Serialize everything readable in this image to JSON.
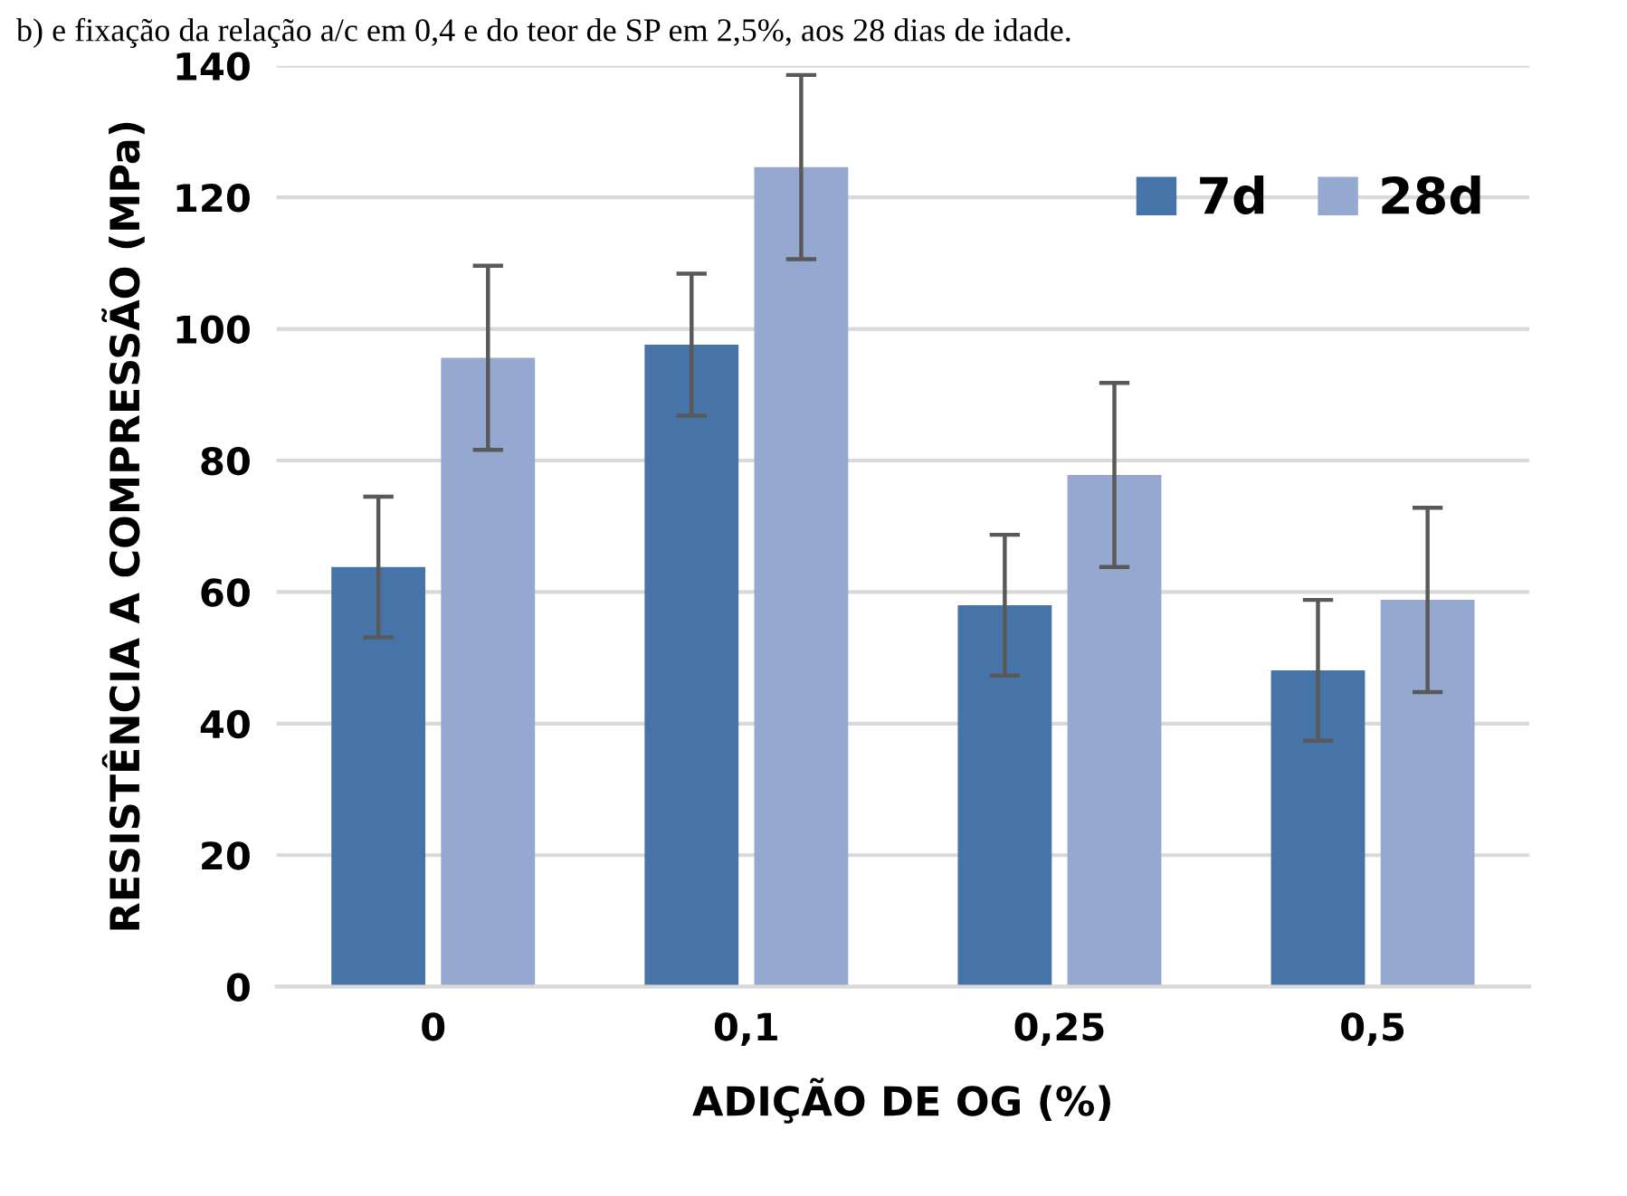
{
  "chart_data": {
    "type": "bar",
    "xlabel": "ADIÇÃO DE OG (%)",
    "ylabel": "RESISTÊNCIA A COMPRESSÃO (MPa)",
    "annotations": [
      "b) e fixação da relação a/c em 0,4 e do teor de SP em 2,5%, aos 28 dias de idade."
    ],
    "categories": [
      "0",
      "0,1",
      "0,25",
      "0,5"
    ],
    "series": [
      {
        "name": "7d",
        "color": "#4674a8",
        "values": [
          63.8,
          97.6,
          58.0,
          48.1
        ],
        "errors": [
          10.7,
          10.8,
          10.7,
          10.7
        ]
      },
      {
        "name": "28d",
        "color": "#95a9d0",
        "values": [
          95.6,
          124.6,
          77.8,
          58.8
        ],
        "errors": [
          14,
          14,
          14,
          14
        ]
      }
    ],
    "ylim": [
      0,
      140
    ],
    "yticks": [
      0,
      20,
      40,
      60,
      80,
      100,
      120,
      140
    ],
    "grid": "y",
    "legend": "top right"
  }
}
